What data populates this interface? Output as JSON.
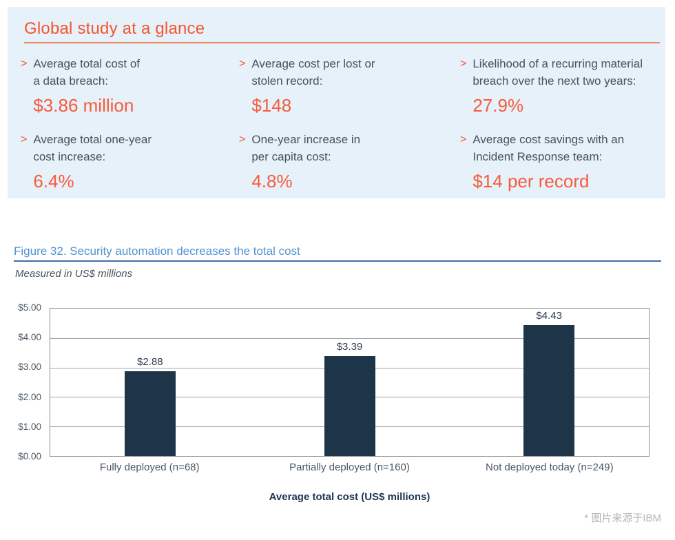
{
  "colors": {
    "accent_orange": "#f4552f",
    "value_orange": "#f75b3d",
    "panel_bg": "#e6f1f9",
    "figure_title_blue": "#4f94d0",
    "bar_navy": "#1e3449",
    "grid_gray": "#a3a3a3"
  },
  "panel": {
    "title": "Global study at a glance",
    "items": [
      {
        "label": "Average total cost of\na data breach:",
        "value": "$3.86 million"
      },
      {
        "label": "Average cost per lost or\nstolen record:",
        "value": "$148"
      },
      {
        "label": "Likelihood of a recurring material\nbreach over the next two years:",
        "value": "27.9%"
      },
      {
        "label": "Average total one-year\ncost increase:",
        "value": "6.4%"
      },
      {
        "label": "One-year increase in\nper capita cost:",
        "value": "4.8%"
      },
      {
        "label": "Average cost savings with an\nIncident Response team:",
        "value": "$14 per record"
      }
    ]
  },
  "figure": {
    "title": "Figure 32. Security automation decreases the total cost",
    "subtitle": "Measured in US$ millions",
    "footnote": "* 图片来源于IBM"
  },
  "chart_data": {
    "type": "bar",
    "title": "Figure 32. Security automation decreases the total cost",
    "subtitle": "Measured in US$ millions",
    "categories": [
      "Fully deployed (n=68)",
      "Partially deployed (n=160)",
      "Not deployed today (n=249)"
    ],
    "values": [
      2.88,
      3.39,
      4.43
    ],
    "value_labels": [
      "$2.88",
      "$3.39",
      "$4.43"
    ],
    "xlabel": "Average total cost (US$ millions)",
    "ylabel": "",
    "ylim": [
      0,
      5
    ],
    "ytick_step": 1,
    "ytick_labels": [
      "$0.00",
      "$1.00",
      "$2.00",
      "$3.00",
      "$4.00",
      "$5.00"
    ],
    "grid": true,
    "legend": false,
    "bar_color": "#1e3449"
  }
}
